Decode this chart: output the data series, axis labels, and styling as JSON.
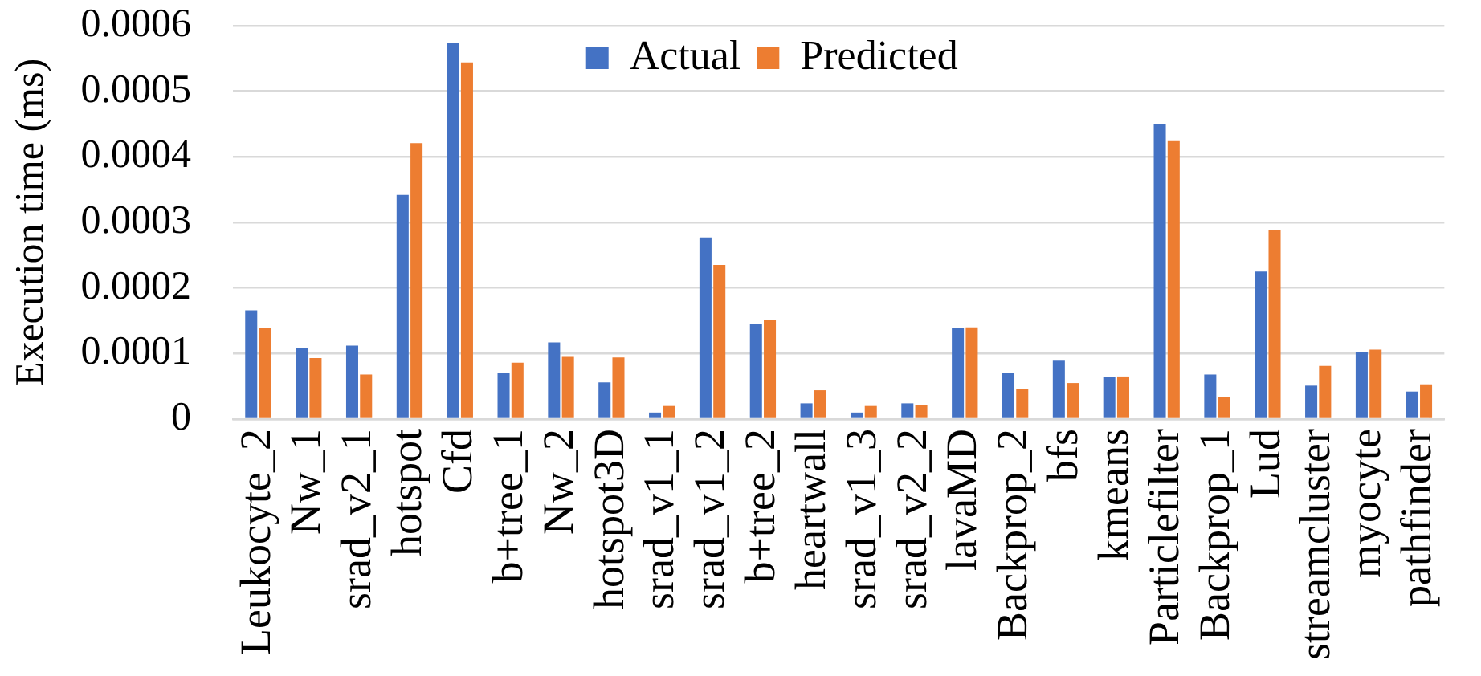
{
  "chart_data": {
    "type": "bar",
    "ylabel": "Execution time (ms)",
    "categories": [
      "Leukocyte_2",
      "Nw_1",
      "srad_v2_1",
      "hotspot",
      "Cfd",
      "b+tree_1",
      "Nw_2",
      "hotspot3D",
      "srad_v1_1",
      "srad_v1_2",
      "b+tree_2",
      "heartwall",
      "srad_v1_3",
      "srad_v2_2",
      "lavaMD",
      "Backprop_2",
      "bfs",
      "kmeans",
      "Particlefilter",
      "Backprop_1",
      "Lud",
      "streamcluster",
      "myocyte",
      "pathfinder"
    ],
    "series": [
      {
        "name": "Actual",
        "color": "#4472c4",
        "values": [
          0.000166,
          0.000108,
          0.000112,
          0.000342,
          0.000574,
          7.1e-05,
          0.000117,
          5.6e-05,
          1e-05,
          0.000277,
          0.000145,
          2.4e-05,
          1e-05,
          2.4e-05,
          0.000139,
          7.1e-05,
          8.9e-05,
          6.4e-05,
          0.00045,
          6.8e-05,
          0.000225,
          5.1e-05,
          0.000103,
          4.2e-05
        ]
      },
      {
        "name": "Predicted",
        "color": "#ed7d31",
        "values": [
          0.000139,
          9.3e-05,
          6.8e-05,
          0.000421,
          0.000544,
          8.6e-05,
          9.5e-05,
          9.4e-05,
          2e-05,
          0.000235,
          0.000151,
          4.4e-05,
          2e-05,
          2.2e-05,
          0.00014,
          4.6e-05,
          5.5e-05,
          6.5e-05,
          0.000424,
          3.4e-05,
          0.000289,
          8.1e-05,
          0.000106,
          5.3e-05
        ]
      }
    ],
    "ylim": [
      0,
      0.0006
    ],
    "yticks": [
      0,
      0.0001,
      0.0002,
      0.0003,
      0.0004,
      0.0005,
      0.0006
    ],
    "grid": "y",
    "legend": "top"
  }
}
